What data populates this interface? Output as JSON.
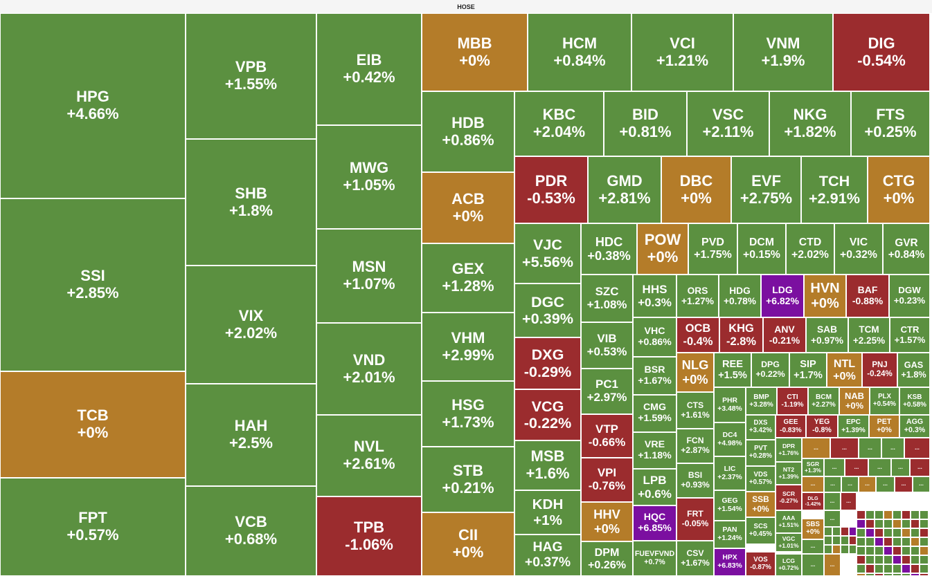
{
  "title": "HOSE",
  "colors": {
    "up": "#5b9040",
    "flat": "#b47c29",
    "down": "#9b2c2e",
    "ceiling": "#7b0fa0"
  },
  "chart_data": {
    "type": "treemap",
    "title": "HOSE",
    "value_unit": "% change",
    "items": [
      {
        "ticker": "HPG",
        "label": "+4.66%",
        "value": 4.66
      },
      {
        "ticker": "SSI",
        "label": "+2.85%",
        "value": 2.85
      },
      {
        "ticker": "TCB",
        "label": "+0%",
        "value": 0
      },
      {
        "ticker": "FPT",
        "label": "+0.57%",
        "value": 0.57
      },
      {
        "ticker": "VPB",
        "label": "+1.55%",
        "value": 1.55
      },
      {
        "ticker": "SHB",
        "label": "+1.8%",
        "value": 1.8
      },
      {
        "ticker": "VIX",
        "label": "+2.02%",
        "value": 2.02
      },
      {
        "ticker": "HAH",
        "label": "+2.5%",
        "value": 2.5
      },
      {
        "ticker": "VCB",
        "label": "+0.68%",
        "value": 0.68
      },
      {
        "ticker": "EIB",
        "label": "+0.42%",
        "value": 0.42
      },
      {
        "ticker": "MWG",
        "label": "+1.05%",
        "value": 1.05
      },
      {
        "ticker": "MSN",
        "label": "+1.07%",
        "value": 1.07
      },
      {
        "ticker": "VND",
        "label": "+2.01%",
        "value": 2.01
      },
      {
        "ticker": "NVL",
        "label": "+2.61%",
        "value": 2.61
      },
      {
        "ticker": "TPB",
        "label": "-1.06%",
        "value": -1.06
      },
      {
        "ticker": "MBB",
        "label": "+0%",
        "value": 0
      },
      {
        "ticker": "HDB",
        "label": "+0.86%",
        "value": 0.86
      },
      {
        "ticker": "ACB",
        "label": "+0%",
        "value": 0
      },
      {
        "ticker": "GEX",
        "label": "+1.28%",
        "value": 1.28
      },
      {
        "ticker": "VHM",
        "label": "+2.99%",
        "value": 2.99
      },
      {
        "ticker": "HSG",
        "label": "+1.73%",
        "value": 1.73
      },
      {
        "ticker": "STB",
        "label": "+0.21%",
        "value": 0.21
      },
      {
        "ticker": "CII",
        "label": "+0%",
        "value": 0
      },
      {
        "ticker": "HCM",
        "label": "+0.84%",
        "value": 0.84
      },
      {
        "ticker": "VCI",
        "label": "+1.21%",
        "value": 1.21
      },
      {
        "ticker": "VNM",
        "label": "+1.9%",
        "value": 1.9
      },
      {
        "ticker": "DIG",
        "label": "-0.54%",
        "value": -0.54
      },
      {
        "ticker": "KBC",
        "label": "+2.04%",
        "value": 2.04
      },
      {
        "ticker": "BID",
        "label": "+0.81%",
        "value": 0.81
      },
      {
        "ticker": "VSC",
        "label": "+2.11%",
        "value": 2.11
      },
      {
        "ticker": "NKG",
        "label": "+1.82%",
        "value": 1.82
      },
      {
        "ticker": "FTS",
        "label": "+0.25%",
        "value": 0.25
      },
      {
        "ticker": "PDR",
        "label": "-0.53%",
        "value": -0.53
      },
      {
        "ticker": "GMD",
        "label": "+2.81%",
        "value": 2.81
      },
      {
        "ticker": "DBC",
        "label": "+0%",
        "value": 0
      },
      {
        "ticker": "EVF",
        "label": "+2.75%",
        "value": 2.75
      },
      {
        "ticker": "TCH",
        "label": "+2.91%",
        "value": 2.91
      },
      {
        "ticker": "CTG",
        "label": "+0%",
        "value": 0
      },
      {
        "ticker": "VJC",
        "label": "+5.56%",
        "value": 5.56
      },
      {
        "ticker": "DGC",
        "label": "+0.39%",
        "value": 0.39
      },
      {
        "ticker": "DXG",
        "label": "-0.29%",
        "value": -0.29
      },
      {
        "ticker": "VCG",
        "label": "-0.22%",
        "value": -0.22
      },
      {
        "ticker": "MSB",
        "label": "+1.6%",
        "value": 1.6
      },
      {
        "ticker": "KDH",
        "label": "+1%",
        "value": 1
      },
      {
        "ticker": "HAG",
        "label": "+0.37%",
        "value": 0.37
      },
      {
        "ticker": "HDC",
        "label": "+0.38%",
        "value": 0.38
      },
      {
        "ticker": "POW",
        "label": "+0%",
        "value": 0
      },
      {
        "ticker": "PVD",
        "label": "+1.75%",
        "value": 1.75
      },
      {
        "ticker": "DCM",
        "label": "+0.15%",
        "value": 0.15
      },
      {
        "ticker": "CTD",
        "label": "+2.02%",
        "value": 2.02
      },
      {
        "ticker": "VIC",
        "label": "+0.32%",
        "value": 0.32
      },
      {
        "ticker": "GVR",
        "label": "+0.84%",
        "value": 0.84
      },
      {
        "ticker": "SZC",
        "label": "+1.08%",
        "value": 1.08
      },
      {
        "ticker": "HHS",
        "label": "+0.3%",
        "value": 0.3
      },
      {
        "ticker": "ORS",
        "label": "+1.27%",
        "value": 1.27
      },
      {
        "ticker": "HDG",
        "label": "+0.78%",
        "value": 0.78
      },
      {
        "ticker": "LDG",
        "label": "+6.82%",
        "value": 6.82,
        "ceiling": true
      },
      {
        "ticker": "HVN",
        "label": "+0%",
        "value": 0
      },
      {
        "ticker": "BAF",
        "label": "-0.88%",
        "value": -0.88
      },
      {
        "ticker": "DGW",
        "label": "+0.23%",
        "value": 0.23
      },
      {
        "ticker": "VIB",
        "label": "+0.53%",
        "value": 0.53
      },
      {
        "ticker": "VHC",
        "label": "+0.86%",
        "value": 0.86
      },
      {
        "ticker": "OCB",
        "label": "-0.4%",
        "value": -0.4
      },
      {
        "ticker": "KHG",
        "label": "-2.8%",
        "value": -2.8
      },
      {
        "ticker": "ANV",
        "label": "-0.21%",
        "value": -0.21
      },
      {
        "ticker": "SAB",
        "label": "+0.97%",
        "value": 0.97
      },
      {
        "ticker": "TCM",
        "label": "+2.25%",
        "value": 2.25
      },
      {
        "ticker": "CTR",
        "label": "+1.57%",
        "value": 1.57
      },
      {
        "ticker": "PC1",
        "label": "+2.97%",
        "value": 2.97
      },
      {
        "ticker": "BSR",
        "label": "+1.67%",
        "value": 1.67
      },
      {
        "ticker": "NLG",
        "label": "+0%",
        "value": 0
      },
      {
        "ticker": "REE",
        "label": "+1.5%",
        "value": 1.5
      },
      {
        "ticker": "DPG",
        "label": "+0.22%",
        "value": 0.22
      },
      {
        "ticker": "SIP",
        "label": "+1.7%",
        "value": 1.7
      },
      {
        "ticker": "NTL",
        "label": "+0%",
        "value": 0
      },
      {
        "ticker": "PNJ",
        "label": "-0.24%",
        "value": -0.24
      },
      {
        "ticker": "GAS",
        "label": "+1.8%",
        "value": 1.8
      },
      {
        "ticker": "VTP",
        "label": "-0.66%",
        "value": -0.66
      },
      {
        "ticker": "CMG",
        "label": "+1.59%",
        "value": 1.59
      },
      {
        "ticker": "CTS",
        "label": "+1.61%",
        "value": 1.61
      },
      {
        "ticker": "PHR",
        "label": "+3.48%",
        "value": 3.48
      },
      {
        "ticker": "BMP",
        "label": "+3.28%",
        "value": 3.28
      },
      {
        "ticker": "CTI",
        "label": "-1.19%",
        "value": -1.19
      },
      {
        "ticker": "BCM",
        "label": "+2.27%",
        "value": 2.27
      },
      {
        "ticker": "NAB",
        "label": "+0%",
        "value": 0
      },
      {
        "ticker": "PLX",
        "label": "+0.54%",
        "value": 0.54
      },
      {
        "ticker": "KSB",
        "label": "+0.58%",
        "value": 0.58
      },
      {
        "ticker": "DXS",
        "label": "+3.42%",
        "value": 3.42
      },
      {
        "ticker": "GEE",
        "label": "-0.83%",
        "value": -0.83
      },
      {
        "ticker": "YEG",
        "label": "-0.8%",
        "value": -0.8
      },
      {
        "ticker": "EPC",
        "label": "+1.39%",
        "value": 1.39
      },
      {
        "ticker": "PET",
        "label": "+0%",
        "value": 0
      },
      {
        "ticker": "AGG",
        "label": "+0.3%",
        "value": 0.3
      },
      {
        "ticker": "VRE",
        "label": "+1.18%",
        "value": 1.18
      },
      {
        "ticker": "FCN",
        "label": "+2.87%",
        "value": 2.87
      },
      {
        "ticker": "DC4",
        "label": "+4.98%",
        "value": 4.98
      },
      {
        "ticker": "PVT",
        "label": "+0.28%",
        "value": 0.28
      },
      {
        "ticker": "DPR",
        "label": "+1.76%",
        "value": 1.76
      },
      {
        "ticker": "VPI",
        "label": "-0.76%",
        "value": -0.76
      },
      {
        "ticker": "LPB",
        "label": "+0.6%",
        "value": 0.6
      },
      {
        "ticker": "BSI",
        "label": "+0.93%",
        "value": 0.93
      },
      {
        "ticker": "LIC",
        "label": "+2.37%",
        "value": 2.37
      },
      {
        "ticker": "NT2",
        "label": "+1.39%",
        "value": 1.39
      },
      {
        "ticker": "SGR",
        "label": "+1.3%",
        "value": 1.3
      },
      {
        "ticker": "VDS",
        "label": "+0.57%",
        "value": 0.57
      },
      {
        "ticker": "SCR",
        "label": "-0.27%",
        "value": -0.27
      },
      {
        "ticker": "GEG",
        "label": "+1.54%",
        "value": 1.54
      },
      {
        "ticker": "DLG",
        "label": "-1.42%",
        "value": -1.42
      },
      {
        "ticker": "HHV",
        "label": "+0%",
        "value": 0
      },
      {
        "ticker": "HQC",
        "label": "+6.85%",
        "value": 6.85,
        "ceiling": true
      },
      {
        "ticker": "FRT",
        "label": "-0.05%",
        "value": -0.05
      },
      {
        "ticker": "SSB",
        "label": "+0%",
        "value": 0
      },
      {
        "ticker": "AAA",
        "label": "+1.51%",
        "value": 1.51
      },
      {
        "ticker": "PAN",
        "label": "+1.24%",
        "value": 1.24
      },
      {
        "ticker": "SBS",
        "label": "+0%",
        "value": 0
      },
      {
        "ticker": "SCS",
        "label": "+0.45%",
        "value": 0.45
      },
      {
        "ticker": "VGC",
        "label": "+1.01%",
        "value": 1.01
      },
      {
        "ticker": "DPM",
        "label": "+0.26%",
        "value": 0.26
      },
      {
        "ticker": "FUEVFVND",
        "label": "+0.7%",
        "value": 0.7
      },
      {
        "ticker": "CSV",
        "label": "+1.67%",
        "value": 1.67
      },
      {
        "ticker": "HPX",
        "label": "+6.83%",
        "value": 6.83,
        "ceiling": true
      },
      {
        "ticker": "VOS",
        "label": "-0.87%",
        "value": -0.87
      },
      {
        "ticker": "LCG",
        "label": "+0.72%",
        "value": 0.72
      }
    ],
    "ellipsis_tiles": [
      {
        "label": "...",
        "value": 0
      },
      {
        "label": "...",
        "value": -1
      },
      {
        "label": "...",
        "value": 1
      },
      {
        "label": "...",
        "value": 1
      },
      {
        "label": "...",
        "value": -1
      },
      {
        "label": "...",
        "value": 1
      },
      {
        "label": "...",
        "value": -1
      },
      {
        "label": "...",
        "value": 1
      },
      {
        "label": "...",
        "value": 1
      },
      {
        "label": "...",
        "value": -1
      },
      {
        "label": "...",
        "value": 0
      },
      {
        "label": "...",
        "value": 1
      },
      {
        "label": "...",
        "value": 1
      },
      {
        "label": "...",
        "value": 0
      },
      {
        "label": "...",
        "value": 1
      },
      {
        "label": "...",
        "value": -1
      },
      {
        "label": "...",
        "value": 1
      },
      {
        "label": "...",
        "value": 1
      },
      {
        "label": "...",
        "value": -1
      },
      {
        "label": "...",
        "value": 1
      },
      {
        "label": "...",
        "value": 1
      },
      {
        "label": "...",
        "value": 1
      },
      {
        "label": "...",
        "value": 0
      }
    ]
  }
}
